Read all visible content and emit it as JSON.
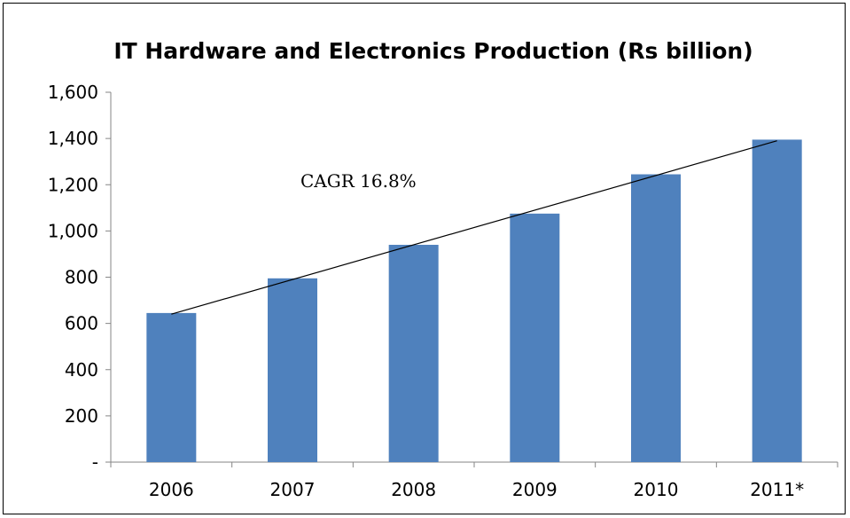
{
  "chart_data": {
    "type": "bar",
    "title": "IT Hardware and Electronics Production (Rs billion)",
    "categories": [
      "2006",
      "2007",
      "2008",
      "2009",
      "2010",
      "2011*"
    ],
    "values": [
      645,
      795,
      940,
      1075,
      1245,
      1395
    ],
    "ylim": [
      0,
      1600
    ],
    "yticks": [
      0,
      200,
      400,
      600,
      800,
      1000,
      1200,
      1400,
      1600
    ],
    "ytick_labels": [
      "-",
      "200",
      "400",
      "600",
      "800",
      "1,000",
      "1,200",
      "1,400",
      "1,600"
    ],
    "grid": false,
    "legend": "none",
    "bar_color": "#4f81bd",
    "trendline": {
      "type": "linear",
      "start_value": 640,
      "end_value": 1390,
      "color": "#000000"
    },
    "annotation": "CAGR 16.8%"
  }
}
